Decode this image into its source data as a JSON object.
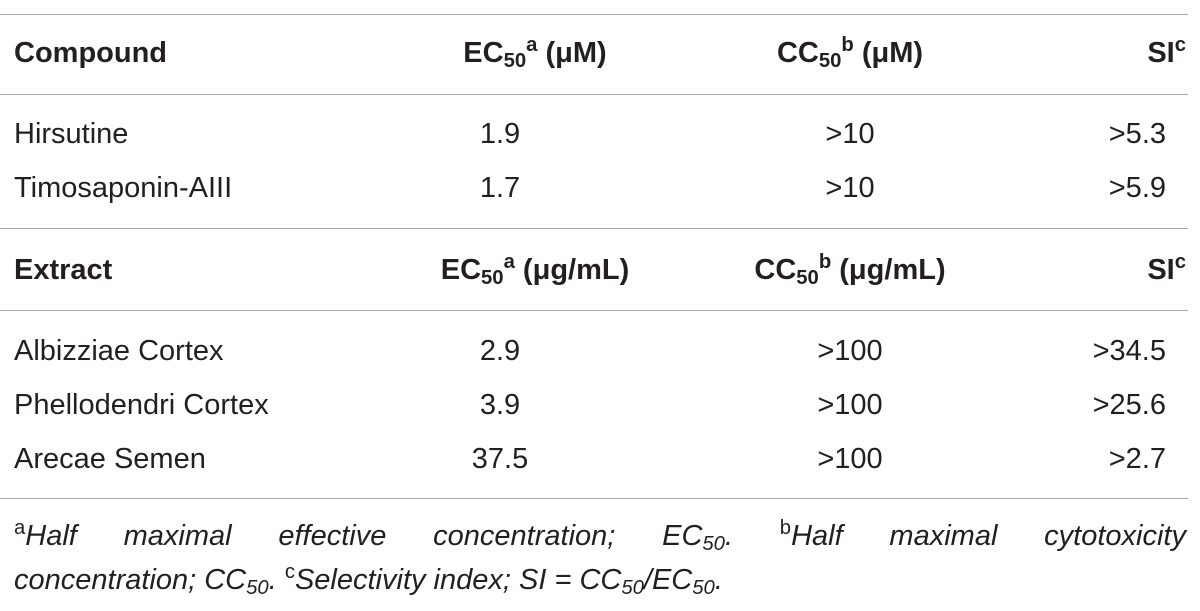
{
  "compound_header": {
    "col1": "Compound",
    "ec50": "EC",
    "ec50_sub": "50",
    "ec50_sup": "a",
    "ec50_unit": " (μM)",
    "cc50": "CC",
    "cc50_sub": "50",
    "cc50_sup": "b",
    "cc50_unit": " (μM)",
    "si": "SI",
    "si_sup": "c"
  },
  "compounds": [
    {
      "name": "Hirsutine",
      "ec50": "1.9",
      "cc50": ">10",
      "si": ">5.3"
    },
    {
      "name": "Timosaponin-AIII",
      "ec50": "1.7",
      "cc50": ">10",
      "si": ">5.9"
    }
  ],
  "extract_header": {
    "col1": "Extract",
    "ec50": "EC",
    "ec50_sub": "50",
    "ec50_sup": "a",
    "ec50_unit": " (μg/mL)",
    "cc50": "CC",
    "cc50_sub": "50",
    "cc50_sup": "b",
    "cc50_unit": " (μg/mL)",
    "si": "SI",
    "si_sup": "c"
  },
  "extracts": [
    {
      "name": "Albizziae Cortex",
      "ec50": "2.9",
      "cc50": ">100",
      "si": ">34.5"
    },
    {
      "name": "Phellodendri Cortex",
      "ec50": "3.9",
      "cc50": ">100",
      "si": ">25.6"
    },
    {
      "name": "Arecae Semen",
      "ec50": "37.5",
      "cc50": ">100",
      "si": ">2.7"
    }
  ],
  "footnotes": {
    "a_mark": "a",
    "a_text": "Half maximal effective concentration; EC",
    "a_sub": "50",
    "a_end": ".",
    "b_mark": "b",
    "b_text": "Half maximal cytotoxicity",
    "b_text2": "concentration; CC",
    "b_sub": "50",
    "b_end": ".",
    "c_mark": "c",
    "c_text": "Selectivity index; SI = CC",
    "c_sub1": "50",
    "c_mid": "/EC",
    "c_sub2": "50",
    "c_end": "."
  }
}
